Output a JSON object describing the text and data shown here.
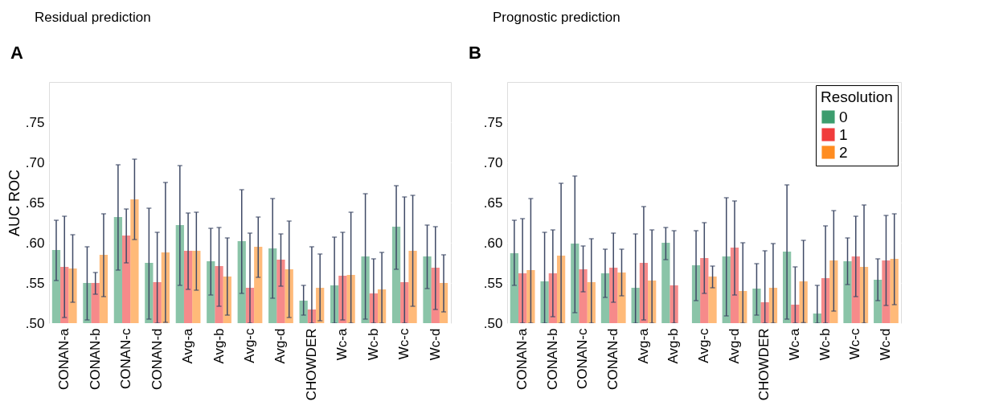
{
  "chart_data": [
    {
      "type": "bar",
      "title": "Residual prediction",
      "annotations": [
        "A"
      ],
      "ylabel": "AUC ROC",
      "categories": [
        "CONAN-a",
        "CONAN-b",
        "CONAN-c",
        "CONAN-d",
        "Avg-a",
        "Avg-b",
        "Avg-c",
        "Avg-d",
        "CHOWDER",
        "Wc-a",
        "Wc-b",
        "Wc-c",
        "Wc-d"
      ],
      "ylim": [
        0.5,
        0.8
      ],
      "yticks": [
        {
          "value": 0.5,
          "label": ".50"
        },
        {
          "value": 0.55,
          "label": ".55"
        },
        {
          "value": 0.6,
          "label": ".60"
        },
        {
          "value": 0.65,
          "label": ".65"
        },
        {
          "value": 0.7,
          "label": ".70"
        },
        {
          "value": 0.75,
          "label": ".75"
        }
      ],
      "grid": "y",
      "legend": false,
      "series": [
        {
          "color": "#3c9d6e",
          "values": [
            0.591,
            0.55,
            0.632,
            0.575,
            0.622,
            0.577,
            0.602,
            0.593,
            0.528,
            0.547,
            0.583,
            0.62,
            0.583
          ],
          "errors": [
            [
              0.553,
              0.628
            ],
            [
              0.504,
              0.595
            ],
            [
              0.566,
              0.697
            ],
            [
              0.505,
              0.643
            ],
            [
              0.547,
              0.696
            ],
            [
              0.535,
              0.618
            ],
            [
              0.537,
              0.666
            ],
            [
              0.531,
              0.655
            ],
            [
              0.51,
              0.547
            ],
            [
              0.5,
              0.607
            ],
            [
              0.505,
              0.661
            ],
            [
              0.567,
              0.671
            ],
            [
              0.543,
              0.622
            ]
          ]
        },
        {
          "color": "#f03c3c",
          "values": [
            0.57,
            0.55,
            0.609,
            0.551,
            0.59,
            0.571,
            0.544,
            0.579,
            0.517,
            0.559,
            0.537,
            0.551,
            0.569
          ],
          "errors": [
            [
              0.507,
              0.633
            ],
            [
              0.536,
              0.563
            ],
            [
              0.575,
              0.642
            ],
            [
              0.5,
              0.613
            ],
            [
              0.542,
              0.637
            ],
            [
              0.521,
              0.619
            ],
            [
              0.5,
              0.612
            ],
            [
              0.546,
              0.611
            ],
            [
              0.5,
              0.595
            ],
            [
              0.504,
              0.613
            ],
            [
              0.5,
              0.58
            ],
            [
              0.5,
              0.657
            ],
            [
              0.517,
              0.62
            ]
          ]
        },
        {
          "color": "#ff8c20",
          "values": [
            0.568,
            0.585,
            0.654,
            0.588,
            0.59,
            0.558,
            0.595,
            0.567,
            0.544,
            0.56,
            0.542,
            0.59,
            0.55
          ],
          "errors": [
            [
              0.526,
              0.61
            ],
            [
              0.533,
              0.636
            ],
            [
              0.604,
              0.704
            ],
            [
              0.501,
              0.675
            ],
            [
              0.541,
              0.638
            ],
            [
              0.51,
              0.606
            ],
            [
              0.557,
              0.632
            ],
            [
              0.507,
              0.627
            ],
            [
              0.503,
              0.586
            ],
            [
              0.5,
              0.638
            ],
            [
              0.5,
              0.588
            ],
            [
              0.521,
              0.659
            ],
            [
              0.514,
              0.585
            ]
          ]
        }
      ]
    },
    {
      "type": "bar",
      "title": "Prognostic prediction",
      "annotations": [
        "B"
      ],
      "legend_title": "Resolution",
      "categories": [
        "CONAN-a",
        "CONAN-b",
        "CONAN-c",
        "CONAN-d",
        "Avg-a",
        "Avg-b",
        "Avg-c",
        "Avg-d",
        "CHOWDER",
        "Wc-a",
        "Wc-b",
        "Wc-c",
        "Wc-d"
      ],
      "ylim": [
        0.5,
        0.8
      ],
      "yticks": [
        {
          "value": 0.5,
          "label": ".50"
        },
        {
          "value": 0.55,
          "label": ".55"
        },
        {
          "value": 0.6,
          "label": ".60"
        },
        {
          "value": 0.65,
          "label": ".65"
        },
        {
          "value": 0.7,
          "label": ".70"
        },
        {
          "value": 0.75,
          "label": ".75"
        }
      ],
      "grid": "y",
      "legend": "top right",
      "series": [
        {
          "name": "0",
          "color": "#3c9d6e",
          "values": [
            0.587,
            0.552,
            0.599,
            0.562,
            0.544,
            0.6,
            0.572,
            0.583,
            0.543,
            0.589,
            0.512,
            0.577,
            0.554
          ],
          "errors": [
            [
              0.547,
              0.628
            ],
            [
              0.5,
              0.613
            ],
            [
              0.513,
              0.683
            ],
            [
              0.532,
              0.592
            ],
            [
              0.5,
              0.611
            ],
            [
              0.579,
              0.619
            ],
            [
              0.528,
              0.615
            ],
            [
              0.509,
              0.656
            ],
            [
              0.51,
              0.574
            ],
            [
              0.505,
              0.672
            ],
            [
              0.5,
              0.547
            ],
            [
              0.548,
              0.606
            ],
            [
              0.528,
              0.58
            ]
          ]
        },
        {
          "name": "1",
          "color": "#f03c3c",
          "values": [
            0.562,
            0.562,
            0.567,
            0.569,
            0.575,
            0.547,
            0.581,
            0.594,
            0.526,
            0.523,
            0.556,
            0.583,
            0.578
          ],
          "errors": [
            [
              0.5,
              0.63
            ],
            [
              0.508,
              0.616
            ],
            [
              0.539,
              0.596
            ],
            [
              0.526,
              0.612
            ],
            [
              0.504,
              0.645
            ],
            [
              0.5,
              0.615
            ],
            [
              0.537,
              0.625
            ],
            [
              0.535,
              0.652
            ],
            [
              0.5,
              0.59
            ],
            [
              0.5,
              0.57
            ],
            [
              0.5,
              0.621
            ],
            [
              0.533,
              0.633
            ],
            [
              0.522,
              0.634
            ]
          ]
        },
        {
          "name": "2",
          "color": "#ff8c20",
          "values": [
            0.566,
            0.584,
            0.551,
            0.563,
            0.553,
            null,
            0.558,
            0.54,
            0.544,
            0.552,
            0.578,
            0.57,
            0.58
          ],
          "errors": [
            [
              0.5,
              0.655
            ],
            [
              0.5,
              0.674
            ],
            [
              0.5,
              0.605
            ],
            [
              0.534,
              0.592
            ],
            [
              0.5,
              0.616
            ],
            null,
            [
              0.544,
              0.571
            ],
            [
              0.5,
              0.6
            ],
            [
              0.5,
              0.599
            ],
            [
              0.5006,
              0.603
            ],
            [
              0.515,
              0.64
            ],
            [
              0.5,
              0.647
            ],
            [
              0.523,
              0.636
            ]
          ]
        }
      ]
    }
  ]
}
